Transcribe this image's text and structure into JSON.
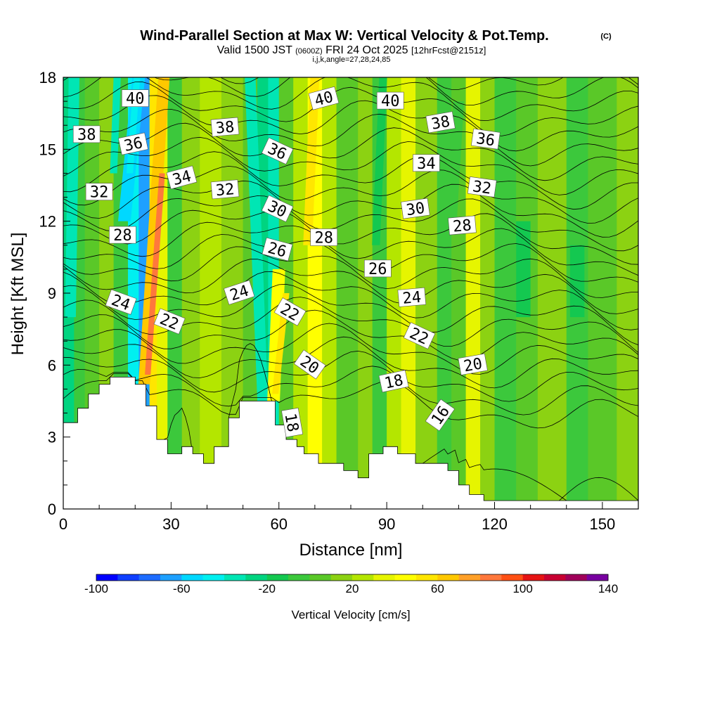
{
  "chart_data": {
    "type": "heatmap",
    "title": "Wind-Parallel Section at Max W: Vertical Velocity & Pot.Temp.",
    "title_mark": "(C)",
    "subtitle_parts": [
      "Valid 1500 JST",
      "(0600Z)",
      "FRI 24 Oct 2025",
      "[12hrFcst@2151z]"
    ],
    "subtitle2": "i,j,k,angle=27,28,24,85",
    "xlabel": "Distance [nm]",
    "ylabel": "Height [Kft MSL]",
    "xlim": [
      0,
      160
    ],
    "ylim": [
      0,
      18
    ],
    "xticks": [
      0,
      30,
      60,
      90,
      120,
      150
    ],
    "yticks": [
      0,
      3,
      6,
      9,
      12,
      15,
      18
    ],
    "colorbar": {
      "label": "Vertical Velocity [cm/s]",
      "min": -100,
      "max": 140,
      "step": 10,
      "ticks": [
        -100,
        -60,
        -20,
        20,
        60,
        100,
        140
      ],
      "colors": [
        "#0000ff",
        "#0f3fff",
        "#1e6cff",
        "#1ea0ff",
        "#00d8ff",
        "#00f0f0",
        "#00e6b4",
        "#00d480",
        "#14c850",
        "#3cc83c",
        "#5ac828",
        "#8cd212",
        "#b4e600",
        "#e6f500",
        "#ffff00",
        "#ffe600",
        "#ffc800",
        "#ffa028",
        "#ff783c",
        "#ff5014",
        "#e61414",
        "#c80032",
        "#a0005a",
        "#7800a0"
      ]
    },
    "terrain": [
      [
        0,
        3.6
      ],
      [
        4,
        3.6
      ],
      [
        4,
        4.2
      ],
      [
        7,
        4.2
      ],
      [
        7,
        4.8
      ],
      [
        10,
        4.8
      ],
      [
        10,
        5.2
      ],
      [
        13,
        5.2
      ],
      [
        13,
        5.5
      ],
      [
        20,
        5.5
      ],
      [
        20,
        5.2
      ],
      [
        23,
        5.2
      ],
      [
        23,
        4.3
      ],
      [
        26,
        4.3
      ],
      [
        26,
        2.9
      ],
      [
        29,
        2.9
      ],
      [
        29,
        2.3
      ],
      [
        33,
        2.3
      ],
      [
        33,
        2.6
      ],
      [
        36,
        2.6
      ],
      [
        36,
        2.3
      ],
      [
        39,
        2.3
      ],
      [
        39,
        1.9
      ],
      [
        42,
        1.9
      ],
      [
        42,
        2.6
      ],
      [
        46,
        2.6
      ],
      [
        46,
        3.8
      ],
      [
        49,
        3.8
      ],
      [
        49,
        4.5
      ],
      [
        59,
        4.5
      ],
      [
        59,
        3.5
      ],
      [
        62,
        3.5
      ],
      [
        62,
        2.9
      ],
      [
        65,
        2.9
      ],
      [
        65,
        2.6
      ],
      [
        67,
        2.6
      ],
      [
        67,
        2.3
      ],
      [
        71,
        2.3
      ],
      [
        71,
        1.9
      ],
      [
        78,
        1.9
      ],
      [
        78,
        1.6
      ],
      [
        82,
        1.6
      ],
      [
        82,
        1.3
      ],
      [
        85,
        1.3
      ],
      [
        85,
        2.3
      ],
      [
        89,
        2.3
      ],
      [
        89,
        2.6
      ],
      [
        93,
        2.6
      ],
      [
        93,
        2.3
      ],
      [
        98,
        2.3
      ],
      [
        98,
        1.9
      ],
      [
        107,
        1.9
      ],
      [
        107,
        1.6
      ],
      [
        110,
        1.6
      ],
      [
        110,
        1.0
      ],
      [
        113,
        1.0
      ],
      [
        113,
        0.6
      ],
      [
        117,
        0.6
      ],
      [
        117,
        0.35
      ],
      [
        160,
        0.35
      ]
    ],
    "theta_contours": [
      {
        "label": "40",
        "x": 20,
        "y": 17.1,
        "rot": 0
      },
      {
        "label": "38",
        "x": 6.5,
        "y": 15.6,
        "rot": 0
      },
      {
        "label": "36",
        "x": 19.5,
        "y": 15.2,
        "rot": -12
      },
      {
        "label": "34",
        "x": 33,
        "y": 13.8,
        "rot": -15
      },
      {
        "label": "32",
        "x": 10,
        "y": 13.2,
        "rot": 0
      },
      {
        "label": "28",
        "x": 16.5,
        "y": 11.4,
        "rot": 0
      },
      {
        "label": "24",
        "x": 16,
        "y": 8.6,
        "rot": 20
      },
      {
        "label": "22",
        "x": 29.5,
        "y": 7.8,
        "rot": 22
      },
      {
        "label": "38",
        "x": 45,
        "y": 15.9,
        "rot": -5
      },
      {
        "label": "32",
        "x": 45,
        "y": 13.3,
        "rot": -5
      },
      {
        "label": "24",
        "x": 49,
        "y": 9.0,
        "rot": -18
      },
      {
        "label": "36",
        "x": 59.5,
        "y": 14.9,
        "rot": 25
      },
      {
        "label": "30",
        "x": 59.5,
        "y": 12.5,
        "rot": 25
      },
      {
        "label": "26",
        "x": 59.5,
        "y": 10.8,
        "rot": 15
      },
      {
        "label": "22",
        "x": 63,
        "y": 8.2,
        "rot": 30
      },
      {
        "label": "20",
        "x": 68.5,
        "y": 6.0,
        "rot": 35
      },
      {
        "label": "18",
        "x": 63.5,
        "y": 3.6,
        "rot": 80
      },
      {
        "label": "40",
        "x": 72.5,
        "y": 17.1,
        "rot": -15
      },
      {
        "label": "28",
        "x": 72.5,
        "y": 11.3,
        "rot": 0
      },
      {
        "label": "40",
        "x": 91,
        "y": 17.0,
        "rot": 0
      },
      {
        "label": "26",
        "x": 87.5,
        "y": 10.0,
        "rot": 0
      },
      {
        "label": "18",
        "x": 92,
        "y": 5.3,
        "rot": -12
      },
      {
        "label": "34",
        "x": 101,
        "y": 14.4,
        "rot": 0
      },
      {
        "label": "30",
        "x": 98,
        "y": 12.5,
        "rot": -8
      },
      {
        "label": "24",
        "x": 97,
        "y": 8.8,
        "rot": -5
      },
      {
        "label": "22",
        "x": 99,
        "y": 7.2,
        "rot": 25
      },
      {
        "label": "16",
        "x": 105,
        "y": 3.9,
        "rot": -55
      },
      {
        "label": "38",
        "x": 105,
        "y": 16.1,
        "rot": -10
      },
      {
        "label": "36",
        "x": 117.5,
        "y": 15.4,
        "rot": 8
      },
      {
        "label": "32",
        "x": 116.5,
        "y": 13.4,
        "rot": 8
      },
      {
        "label": "28",
        "x": 111,
        "y": 11.8,
        "rot": -5
      },
      {
        "label": "20",
        "x": 114,
        "y": 6.0,
        "rot": -10
      }
    ]
  }
}
